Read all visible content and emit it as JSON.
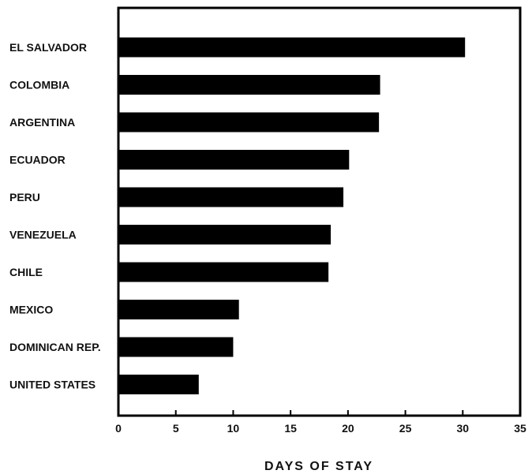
{
  "chart_data": {
    "type": "bar",
    "orientation": "horizontal",
    "categories": [
      "EL SALVADOR",
      "COLOMBIA",
      "ARGENTINA",
      "ECUADOR",
      "PERU",
      "VENEZUELA",
      "CHILE",
      "MEXICO",
      "DOMINICAN REP.",
      "UNITED STATES"
    ],
    "values": [
      30.2,
      22.8,
      22.7,
      20.1,
      19.6,
      18.5,
      18.3,
      10.5,
      10.0,
      7.0
    ],
    "xlabel": "DAYS OF STAY",
    "ylabel": "",
    "xlim": [
      0,
      35
    ],
    "xticks": [
      "0",
      "5",
      "10",
      "15",
      "20",
      "25",
      "30",
      "35"
    ],
    "bar_color": "#000000",
    "grid": false
  }
}
